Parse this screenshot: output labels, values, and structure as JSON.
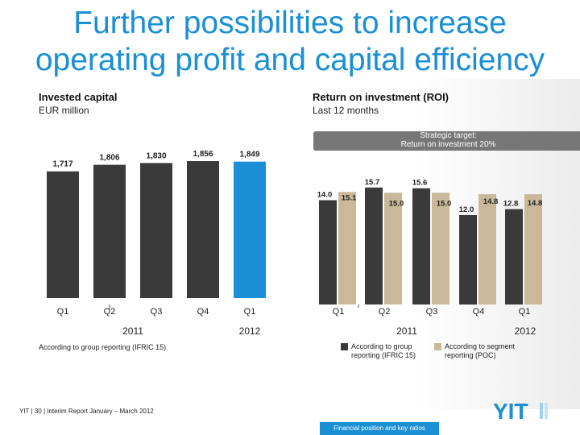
{
  "title_line1": "Further possibilities to increase",
  "title_line2": "operating profit and capital efficiency",
  "left_header": "Invested capital",
  "left_sub": "EUR million",
  "right_header": "Return on investment (ROI)",
  "right_sub": "Last 12 months",
  "target_line1": "Strategic target:",
  "target_line2": "Return on investment 20%",
  "left_note": "According to group reporting (IFRIC 15)",
  "legend": [
    {
      "label_line1": "According to group",
      "label_line2": "reporting (IFRIC 15)",
      "color": "#3a3a3a"
    },
    {
      "label_line1": "According to segment",
      "label_line2": "reporting (POC)",
      "color": "#c9b89a"
    }
  ],
  "footer": "YIT  |  30  |  Interim Report January – March 2012",
  "footer_tab": "Financial position and key ratios",
  "logo_text": "YIT",
  "colors": {
    "title": "#1a8fd6",
    "bar_dark": "#3a3a3a",
    "bar_blue": "#1a8fd6",
    "bar_tan": "#c9b89a"
  },
  "chart_data": [
    {
      "type": "bar",
      "categories": [
        "Q1",
        "Q2",
        "Q3",
        "Q4",
        "Q1"
      ],
      "year_labels": [
        "2011",
        "2012"
      ],
      "values": [
        1717,
        1806,
        1830,
        1856,
        1849
      ],
      "value_labels": [
        "1,717",
        "1,806",
        "1,830",
        "1,856",
        "1,849"
      ],
      "highlight_index": 4,
      "ylim": [
        0,
        1856
      ]
    },
    {
      "type": "bar",
      "categories": [
        "Q1",
        "Q2",
        "Q3",
        "Q4",
        "Q1"
      ],
      "year_labels": [
        "2011",
        "2012"
      ],
      "series": [
        {
          "values": [
            14.0,
            15.7,
            15.6,
            12.0,
            12.8
          ],
          "value_labels": [
            "14.0",
            "15.7",
            "15.6",
            "12.0",
            "12.8"
          ]
        },
        {
          "values": [
            15.1,
            15.0,
            15.0,
            14.8,
            14.8
          ],
          "value_labels": [
            "15.1",
            "15.0",
            "15.0",
            "14.8",
            "14.8"
          ]
        }
      ],
      "ylim": [
        0,
        20
      ]
    }
  ]
}
